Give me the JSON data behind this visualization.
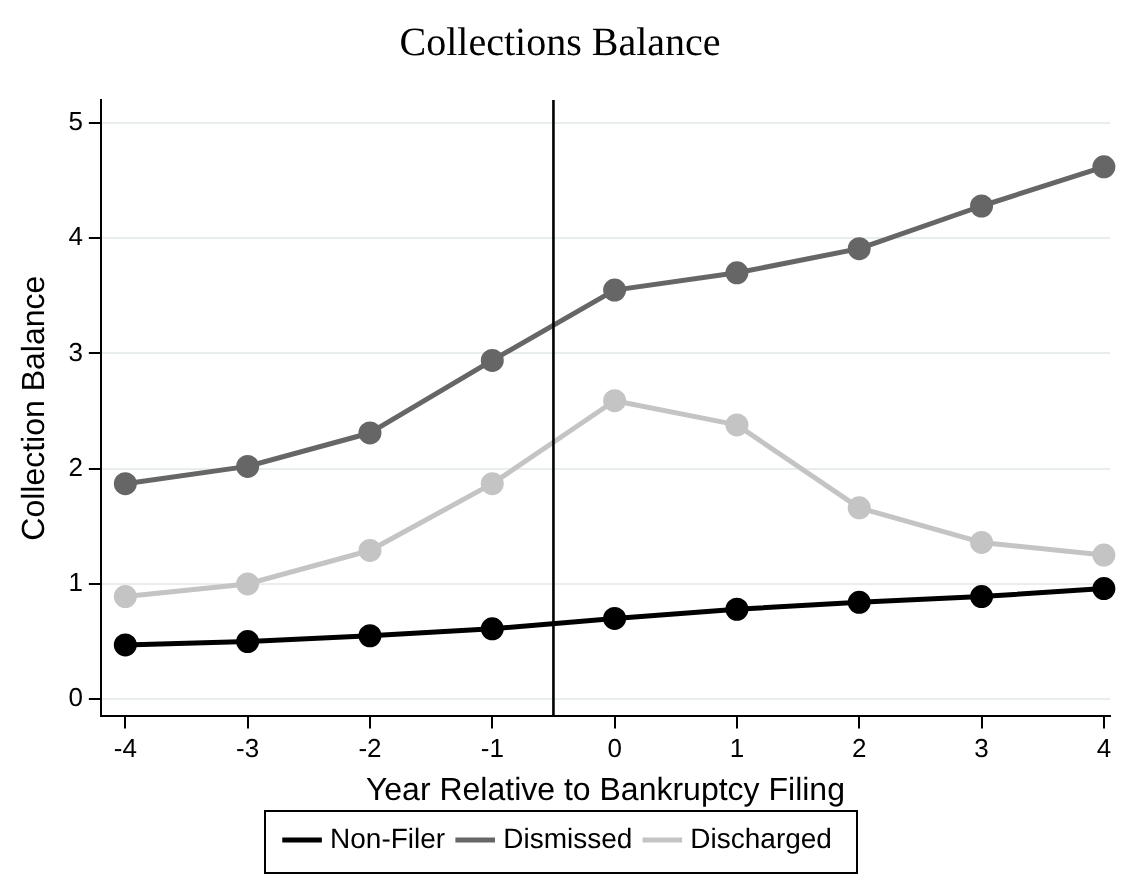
{
  "chart_data": {
    "type": "line",
    "title": "Collections Balance",
    "xlabel": "Year Relative to Bankruptcy Filing",
    "ylabel": "Collection Balance",
    "x": [
      -4,
      -3,
      -2,
      -1,
      0,
      1,
      2,
      3,
      4
    ],
    "series": [
      {
        "name": "Non-Filer",
        "color": "#000000",
        "values": [
          0.47,
          0.5,
          0.55,
          0.61,
          0.7,
          0.78,
          0.84,
          0.89,
          0.96
        ]
      },
      {
        "name": "Dismissed",
        "color": "#666666",
        "values": [
          1.87,
          2.02,
          2.31,
          2.94,
          3.55,
          3.7,
          3.91,
          4.28,
          4.62
        ]
      },
      {
        "name": "Discharged",
        "color": "#c4c4c4",
        "values": [
          0.89,
          1.0,
          1.29,
          1.87,
          2.59,
          2.38,
          1.66,
          1.36,
          1.25
        ]
      }
    ],
    "xlim": [
      -4.2,
      4.05
    ],
    "xticks": [
      -4,
      -3,
      -2,
      -1,
      0,
      1,
      2,
      3,
      4
    ],
    "ylim": [
      -0.15,
      5.2
    ],
    "yticks": [
      0,
      1,
      2,
      3,
      4,
      5
    ],
    "ref_lines": [
      {
        "axis": "x",
        "value": -0.5,
        "color": "#000000"
      }
    ],
    "grid": "y",
    "legend": "bottom",
    "marker": "circle",
    "line_style": "solid"
  }
}
